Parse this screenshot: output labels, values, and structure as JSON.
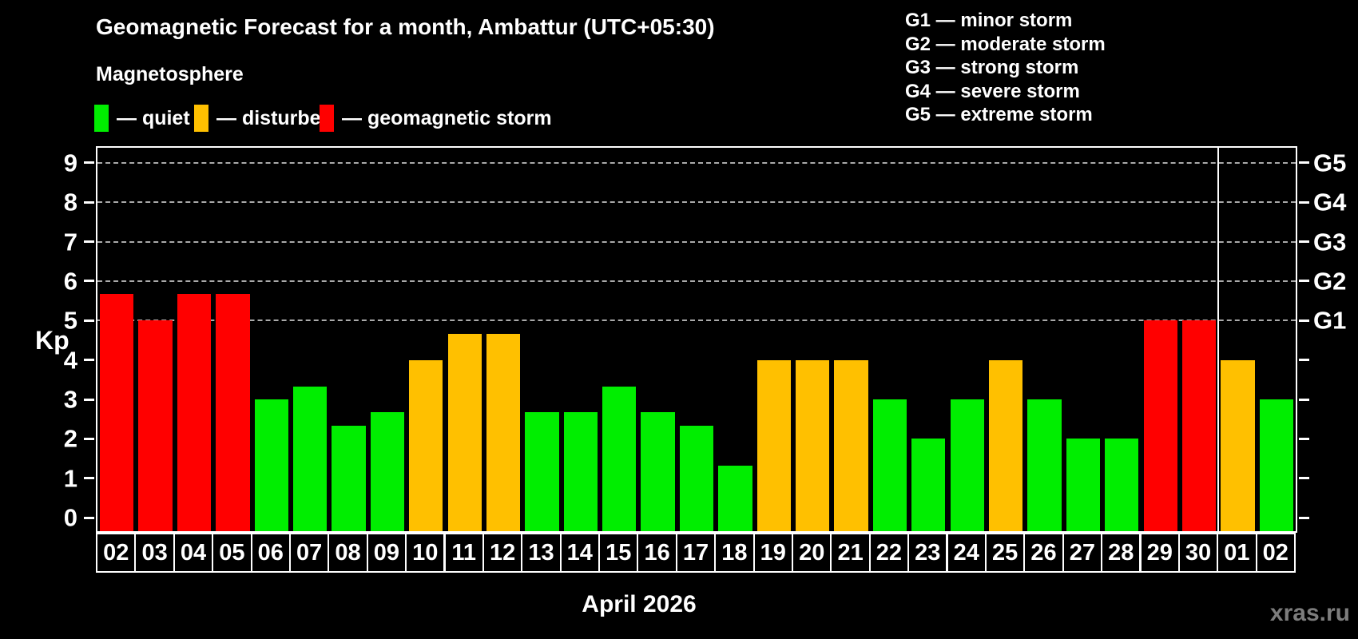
{
  "header": {
    "title": "Geomagnetic Forecast for a month, Ambattur (UTC+05:30)",
    "subtitle": "Magnetosphere"
  },
  "legend": {
    "items": [
      {
        "key": "quiet",
        "label": "— quiet",
        "color": "#00ee00"
      },
      {
        "key": "disturbed",
        "label": "— disturbed",
        "color": "#ffc000"
      },
      {
        "key": "storm",
        "label": "— geomagnetic storm",
        "color": "#ff0000"
      }
    ]
  },
  "storm_scale_legend": {
    "items": [
      "G1 — minor storm",
      "G2 — moderate storm",
      "G3 — strong storm",
      "G4 — severe storm",
      "G5 — extreme storm"
    ]
  },
  "footer": {
    "month_label": "April 2026",
    "watermark": "xras.ru"
  },
  "chart_data": {
    "type": "bar",
    "title": "Geomagnetic Forecast for a month, Ambattur (UTC+05:30)",
    "ylabel": "Kp",
    "xlabel": "April 2026",
    "ylim": [
      0,
      9
    ],
    "y_ticks": [
      0,
      1,
      2,
      3,
      4,
      5,
      6,
      7,
      8,
      9
    ],
    "gridlines_at_kp": [
      5,
      6,
      7,
      8,
      9
    ],
    "grid_style": "dashed horizontal lines at storm levels G1–G5 only",
    "legend_position": "top-left",
    "right_axis_labels": [
      {
        "kp": 5,
        "label": "G1"
      },
      {
        "kp": 6,
        "label": "G2"
      },
      {
        "kp": 7,
        "label": "G3"
      },
      {
        "kp": 8,
        "label": "G4"
      },
      {
        "kp": 9,
        "label": "G5"
      }
    ],
    "month_separator_after_index": 28,
    "categories": [
      "02",
      "03",
      "04",
      "05",
      "06",
      "07",
      "08",
      "09",
      "10",
      "11",
      "12",
      "13",
      "14",
      "15",
      "16",
      "17",
      "18",
      "19",
      "20",
      "21",
      "22",
      "23",
      "24",
      "25",
      "26",
      "27",
      "28",
      "29",
      "30",
      "01",
      "02"
    ],
    "values": [
      5.67,
      5,
      5.67,
      5.67,
      3,
      3.33,
      2.33,
      2.67,
      4,
      4.67,
      4.67,
      2.67,
      2.67,
      3.33,
      2.67,
      2.33,
      1.33,
      4,
      4,
      4,
      3,
      2,
      3,
      4,
      3,
      2,
      2,
      5,
      5,
      4,
      3
    ],
    "statuses": [
      "storm",
      "storm",
      "storm",
      "storm",
      "quiet",
      "quiet",
      "quiet",
      "quiet",
      "disturbed",
      "disturbed",
      "disturbed",
      "quiet",
      "quiet",
      "quiet",
      "quiet",
      "quiet",
      "quiet",
      "disturbed",
      "disturbed",
      "disturbed",
      "quiet",
      "quiet",
      "quiet",
      "disturbed",
      "quiet",
      "quiet",
      "quiet",
      "storm",
      "storm",
      "disturbed",
      "quiet"
    ],
    "colors": {
      "quiet": "#00ee00",
      "disturbed": "#ffc000",
      "storm": "#ff0000"
    }
  }
}
